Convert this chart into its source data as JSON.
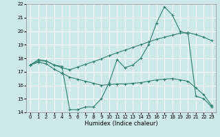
{
  "xlabel": "Humidex (Indice chaleur)",
  "bg_color": "#cce8e8",
  "grid_color": "#ffffff",
  "line_color": "#2e7f6e",
  "xlim": [
    -0.5,
    23.5
  ],
  "ylim": [
    14,
    22
  ],
  "xticks": [
    0,
    1,
    2,
    3,
    4,
    5,
    6,
    7,
    8,
    9,
    10,
    11,
    12,
    13,
    14,
    15,
    16,
    17,
    18,
    19,
    20,
    21,
    22,
    23
  ],
  "yticks": [
    14,
    15,
    16,
    17,
    18,
    19,
    20,
    21,
    22
  ],
  "line1_x": [
    0,
    1,
    2,
    3,
    4,
    5,
    6,
    7,
    8,
    9,
    10,
    11,
    12,
    13,
    14,
    15,
    16,
    17,
    18,
    19,
    20,
    21,
    22,
    23
  ],
  "line1_y": [
    17.5,
    17.9,
    17.8,
    17.5,
    17.4,
    14.2,
    14.2,
    14.4,
    14.4,
    15.0,
    16.2,
    17.9,
    17.3,
    17.5,
    18.0,
    19.0,
    20.6,
    21.8,
    21.2,
    20.0,
    19.8,
    15.2,
    15.0,
    14.4
  ],
  "line2_x": [
    0,
    1,
    2,
    3,
    4,
    5,
    6,
    7,
    8,
    9,
    10,
    11,
    12,
    13,
    14,
    15,
    16,
    17,
    18,
    19,
    20,
    21,
    22,
    23
  ],
  "line2_y": [
    17.5,
    17.8,
    17.8,
    17.5,
    17.3,
    17.15,
    17.35,
    17.55,
    17.75,
    17.95,
    18.2,
    18.4,
    18.6,
    18.8,
    19.0,
    19.2,
    19.4,
    19.55,
    19.7,
    19.85,
    19.9,
    19.75,
    19.55,
    19.3
  ],
  "line3_x": [
    0,
    1,
    2,
    3,
    4,
    5,
    6,
    7,
    8,
    9,
    10,
    11,
    12,
    13,
    14,
    15,
    16,
    17,
    18,
    19,
    20,
    21,
    22,
    23
  ],
  "line3_y": [
    17.5,
    17.7,
    17.6,
    17.2,
    16.9,
    16.6,
    16.45,
    16.3,
    16.15,
    16.0,
    16.05,
    16.1,
    16.1,
    16.15,
    16.2,
    16.3,
    16.4,
    16.45,
    16.5,
    16.4,
    16.3,
    15.8,
    15.3,
    14.5
  ],
  "marker": "+"
}
